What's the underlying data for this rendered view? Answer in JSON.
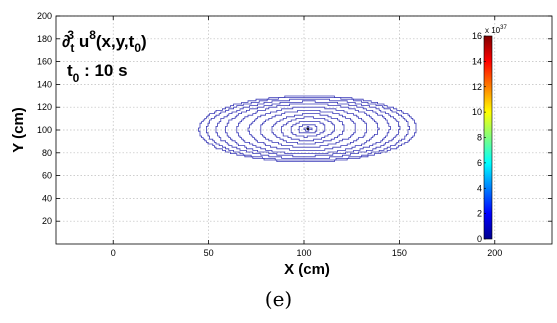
{
  "chart_data": {
    "type": "contour",
    "xlabel": "X (cm)",
    "ylabel": "Y (cm)",
    "xlim": [
      -30,
      230
    ],
    "ylim": [
      0,
      200
    ],
    "xticks": [
      0,
      50,
      100,
      150,
      200
    ],
    "yticks": [
      20,
      40,
      60,
      80,
      100,
      120,
      140,
      160,
      180,
      200
    ],
    "grid": true,
    "contour_center": [
      102,
      101
    ],
    "contour_radii_x": [
      2,
      5,
      9,
      14,
      19,
      25,
      31,
      37,
      43,
      48,
      53,
      57
    ],
    "contour_radii_y": [
      1.5,
      4,
      7,
      10,
      13,
      16,
      19,
      22,
      24,
      26,
      28,
      29
    ],
    "contour_color": "#3b3bb8",
    "colorbar": {
      "ticks": [
        0,
        2,
        4,
        6,
        8,
        10,
        12,
        14,
        16
      ],
      "range": [
        0,
        16
      ],
      "exponent_base": "x 10",
      "exponent_power": "37",
      "colormap": "jet"
    },
    "annotation": {
      "line1_prefix": "∂",
      "line1_sub": "t",
      "line1_sup": "3",
      "line1_main": " u",
      "line1_sup2": "8",
      "line1_args": "(x,y,t",
      "line1_args_sub": "0",
      "line1_close": ")",
      "line2_main": "t",
      "line2_sub": "0",
      "line2_rest": " : 10 s"
    }
  },
  "caption": "(e)"
}
